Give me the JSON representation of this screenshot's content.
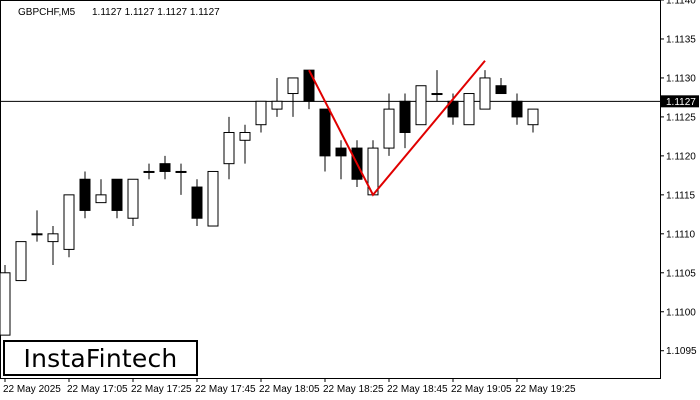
{
  "header": {
    "symbol_label": "GBPCHF,M5",
    "ohlc_label": "1.1127 1.1127 1.1127 1.1127"
  },
  "price_tag": "1.1127",
  "brand": {
    "name": "InstaFintech"
  },
  "colors": {
    "pattern_line": "#e00000",
    "bull_body": "#ffffff",
    "bear_body": "#000000",
    "price_tag_bg": "#000000",
    "price_tag_text": "#ffffff"
  },
  "chart_data": {
    "type": "candlestick",
    "ylim": [
      1.10915,
      1.114
    ],
    "y_ticks": [
      "1.1140",
      "1.1135",
      "1.1130",
      "1.1125",
      "1.1120",
      "1.1115",
      "1.1110",
      "1.1105",
      "1.1100",
      "1.1095"
    ],
    "x_tick_labels": [
      "22 May 2025",
      "22 May 17:05",
      "22 May 17:25",
      "22 May 17:45",
      "22 May 18:05",
      "22 May 18:25",
      "22 May 18:45",
      "22 May 19:05",
      "22 May 19:25"
    ],
    "current_price": 1.1127,
    "candles": [
      {
        "o": 1.1097,
        "h": 1.1106,
        "l": 1.1097,
        "c": 1.1105
      },
      {
        "o": 1.1104,
        "h": 1.1109,
        "l": 1.1104,
        "c": 1.1109
      },
      {
        "o": 1.111,
        "h": 1.1113,
        "l": 1.1109,
        "c": 1.111
      },
      {
        "o": 1.1109,
        "h": 1.1111,
        "l": 1.1106,
        "c": 1.111
      },
      {
        "o": 1.1108,
        "h": 1.1115,
        "l": 1.1107,
        "c": 1.1115
      },
      {
        "o": 1.1117,
        "h": 1.1118,
        "l": 1.1112,
        "c": 1.1113
      },
      {
        "o": 1.1114,
        "h": 1.1117,
        "l": 1.1114,
        "c": 1.1115
      },
      {
        "o": 1.1117,
        "h": 1.1117,
        "l": 1.1112,
        "c": 1.1113
      },
      {
        "o": 1.1112,
        "h": 1.1117,
        "l": 1.1111,
        "c": 1.1117
      },
      {
        "o": 1.1118,
        "h": 1.1119,
        "l": 1.1117,
        "c": 1.1118
      },
      {
        "o": 1.1119,
        "h": 1.112,
        "l": 1.1117,
        "c": 1.1118
      },
      {
        "o": 1.1118,
        "h": 1.1119,
        "l": 1.1115,
        "c": 1.1118
      },
      {
        "o": 1.1116,
        "h": 1.1117,
        "l": 1.1111,
        "c": 1.1112
      },
      {
        "o": 1.1111,
        "h": 1.1118,
        "l": 1.1111,
        "c": 1.1118
      },
      {
        "o": 1.1119,
        "h": 1.1125,
        "l": 1.1117,
        "c": 1.1123
      },
      {
        "o": 1.1122,
        "h": 1.1124,
        "l": 1.1119,
        "c": 1.1123
      },
      {
        "o": 1.1124,
        "h": 1.1127,
        "l": 1.1123,
        "c": 1.1127
      },
      {
        "o": 1.1126,
        "h": 1.113,
        "l": 1.1125,
        "c": 1.1127
      },
      {
        "o": 1.1128,
        "h": 1.113,
        "l": 1.1125,
        "c": 1.113
      },
      {
        "o": 1.1131,
        "h": 1.1131,
        "l": 1.1126,
        "c": 1.1127
      },
      {
        "o": 1.1126,
        "h": 1.1126,
        "l": 1.1118,
        "c": 1.112
      },
      {
        "o": 1.1121,
        "h": 1.1122,
        "l": 1.1117,
        "c": 1.112
      },
      {
        "o": 1.1121,
        "h": 1.1122,
        "l": 1.1116,
        "c": 1.1117
      },
      {
        "o": 1.1115,
        "h": 1.1122,
        "l": 1.1115,
        "c": 1.1121
      },
      {
        "o": 1.1121,
        "h": 1.1128,
        "l": 1.112,
        "c": 1.1126
      },
      {
        "o": 1.1127,
        "h": 1.1128,
        "l": 1.1121,
        "c": 1.1123
      },
      {
        "o": 1.1124,
        "h": 1.1129,
        "l": 1.1124,
        "c": 1.1129
      },
      {
        "o": 1.1128,
        "h": 1.1131,
        "l": 1.1127,
        "c": 1.1128
      },
      {
        "o": 1.1127,
        "h": 1.1128,
        "l": 1.1124,
        "c": 1.1125
      },
      {
        "o": 1.1124,
        "h": 1.1128,
        "l": 1.1124,
        "c": 1.1128
      },
      {
        "o": 1.1126,
        "h": 1.1131,
        "l": 1.1126,
        "c": 1.113
      },
      {
        "o": 1.1129,
        "h": 1.113,
        "l": 1.1128,
        "c": 1.1128
      },
      {
        "o": 1.1127,
        "h": 1.1128,
        "l": 1.1124,
        "c": 1.1125
      },
      {
        "o": 1.1124,
        "h": 1.1126,
        "l": 1.1123,
        "c": 1.1126
      }
    ],
    "pattern_line": [
      {
        "candle_index": 19,
        "price": 1.1131
      },
      {
        "candle_index": 23,
        "price": 1.1115
      },
      {
        "candle_index": 30,
        "price": 1.11322
      }
    ],
    "grid": false
  }
}
